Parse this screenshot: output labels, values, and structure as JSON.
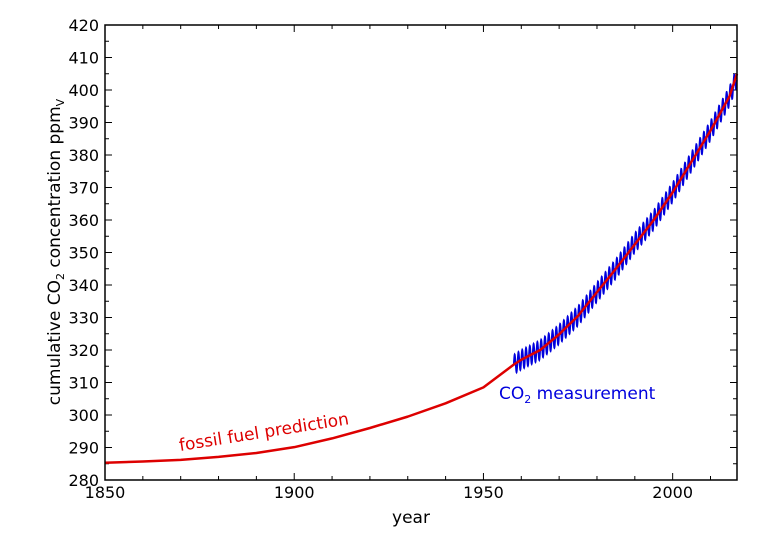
{
  "chart_data": {
    "type": "line",
    "xlabel": "year",
    "ylabel": {
      "prefix": "cumulative CO",
      "subscript": "2",
      "middle": " concentration  ppm",
      "unit_subscript": "V"
    },
    "xlim": [
      1850,
      2017
    ],
    "ylim": [
      280,
      420
    ],
    "xticks": [
      1850,
      1900,
      1950,
      2000
    ],
    "yticks": [
      280,
      290,
      300,
      310,
      320,
      330,
      340,
      350,
      360,
      370,
      380,
      390,
      400,
      410,
      420
    ],
    "grid": false,
    "series": [
      {
        "name": "fossil fuel prediction",
        "color": "#dd0000",
        "x": [
          1850,
          1860,
          1870,
          1880,
          1890,
          1900,
          1910,
          1920,
          1930,
          1940,
          1950,
          1958,
          1960,
          1965,
          1970,
          1975,
          1980,
          1985,
          1990,
          1995,
          2000,
          2005,
          2010,
          2015,
          2017
        ],
        "y": [
          285.3,
          285.7,
          286.2,
          287.1,
          288.3,
          290.1,
          292.8,
          296.0,
          299.5,
          303.6,
          308.5,
          315.5,
          317.0,
          320.0,
          324.8,
          330.5,
          337.8,
          345.0,
          352.5,
          360.0,
          368.5,
          378.0,
          387.5,
          398.0,
          405.0
        ]
      },
      {
        "name_prefix": "CO",
        "name_subscript": "2",
        "name_suffix": " measurement",
        "color": "#0000dd",
        "trend_x": [
          1958,
          1960,
          1965,
          1970,
          1975,
          1980,
          1985,
          1990,
          1995,
          2000,
          2005,
          2010,
          2015,
          2017
        ],
        "trend_y": [
          315.5,
          317.0,
          320.0,
          324.8,
          330.5,
          337.8,
          345.0,
          353.0,
          360.0,
          368.5,
          378.0,
          387.5,
          398.0,
          404.0
        ],
        "seasonal_amplitude": 3.0
      }
    ],
    "annotations": {
      "fossil": "fossil fuel prediction",
      "measurement_prefix": "CO",
      "measurement_subscript": "2",
      "measurement_suffix": " measurement"
    }
  }
}
